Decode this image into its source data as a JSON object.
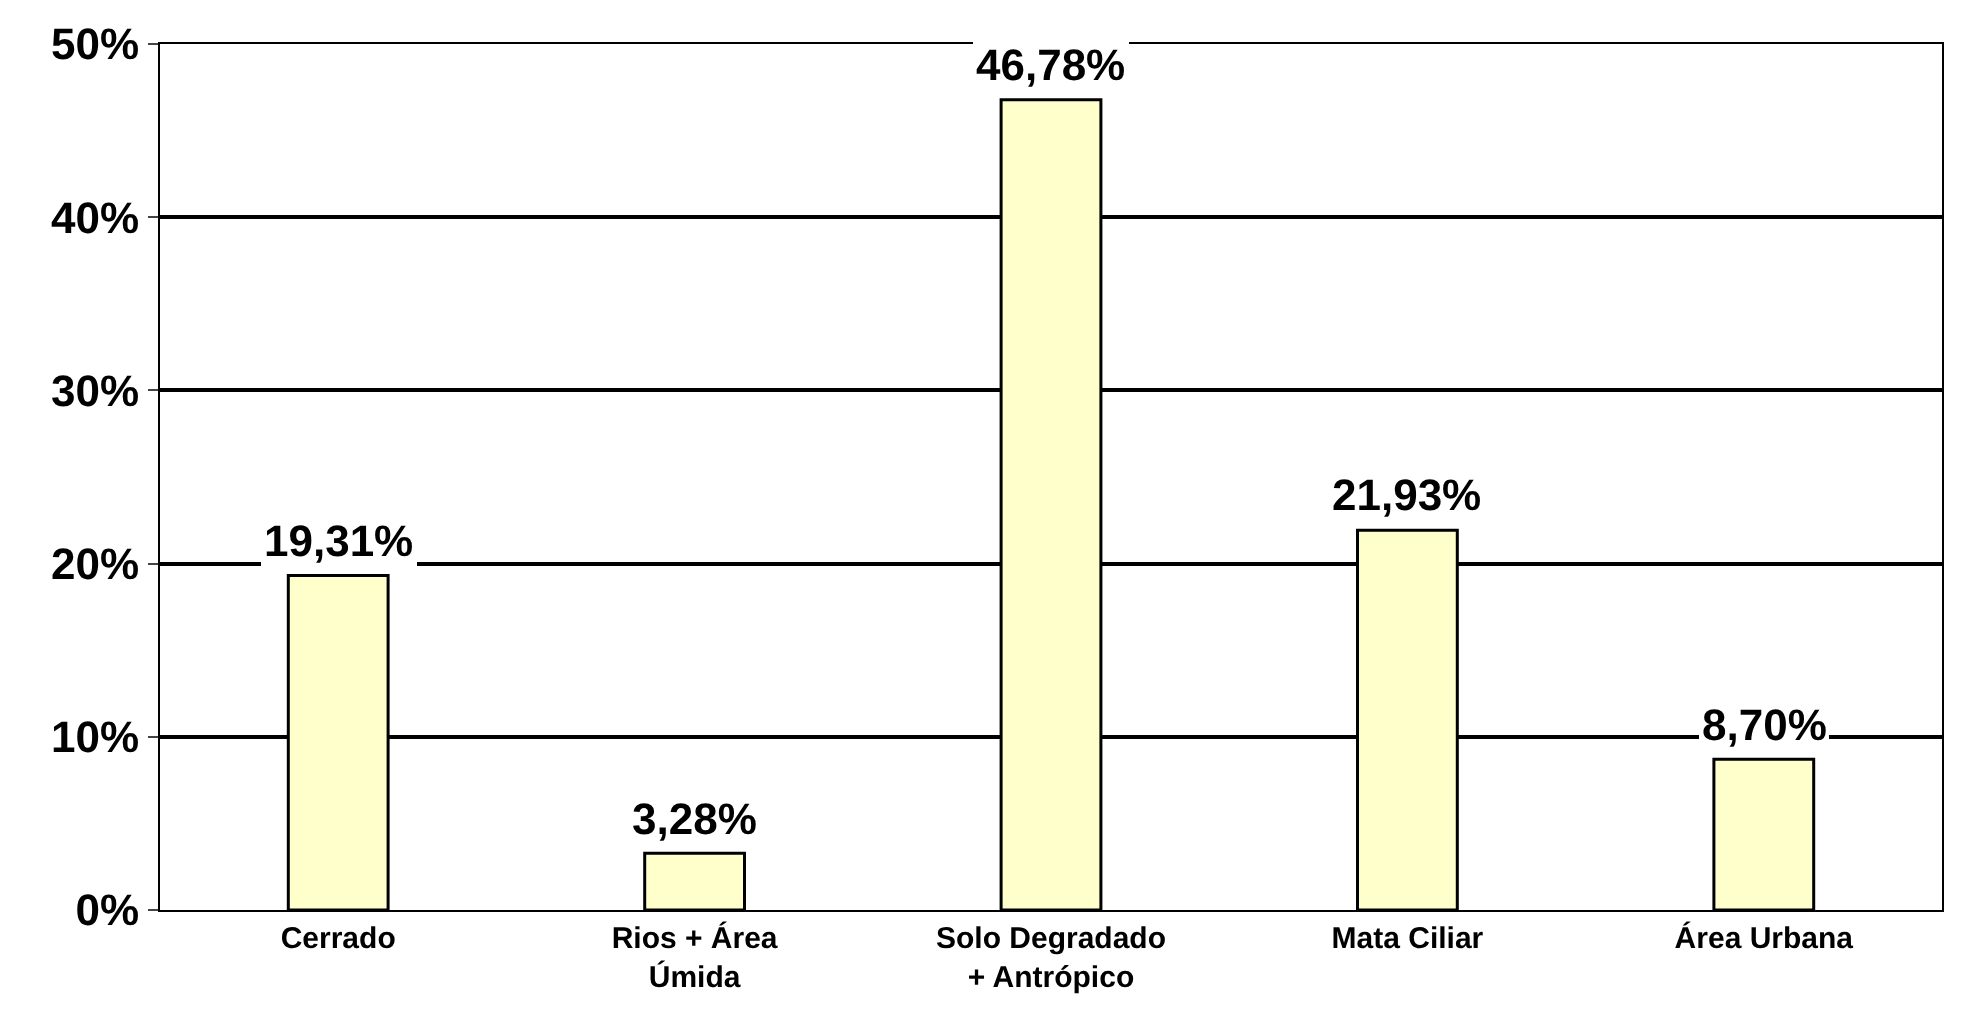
{
  "chart_data": {
    "type": "bar",
    "categories": [
      "Cerrado",
      "Rios + Área\nÚmida",
      "Solo Degradado\n+ Antrópico",
      "Mata Ciliar",
      "Área Urbana"
    ],
    "values": [
      19.31,
      3.28,
      46.78,
      21.93,
      8.7
    ],
    "value_labels": [
      "19,31%",
      "3,28%",
      "46,78%",
      "21,93%",
      "8,70%"
    ],
    "color": "#ffffcc",
    "ylim": [
      0,
      50
    ],
    "yticks": [
      {
        "value": 0,
        "label": "0%"
      },
      {
        "value": 10,
        "label": "10%"
      },
      {
        "value": 20,
        "label": "20%"
      },
      {
        "value": 30,
        "label": "30%"
      },
      {
        "value": 40,
        "label": "40%"
      },
      {
        "value": 50,
        "label": "50%"
      }
    ],
    "grid": "y"
  }
}
